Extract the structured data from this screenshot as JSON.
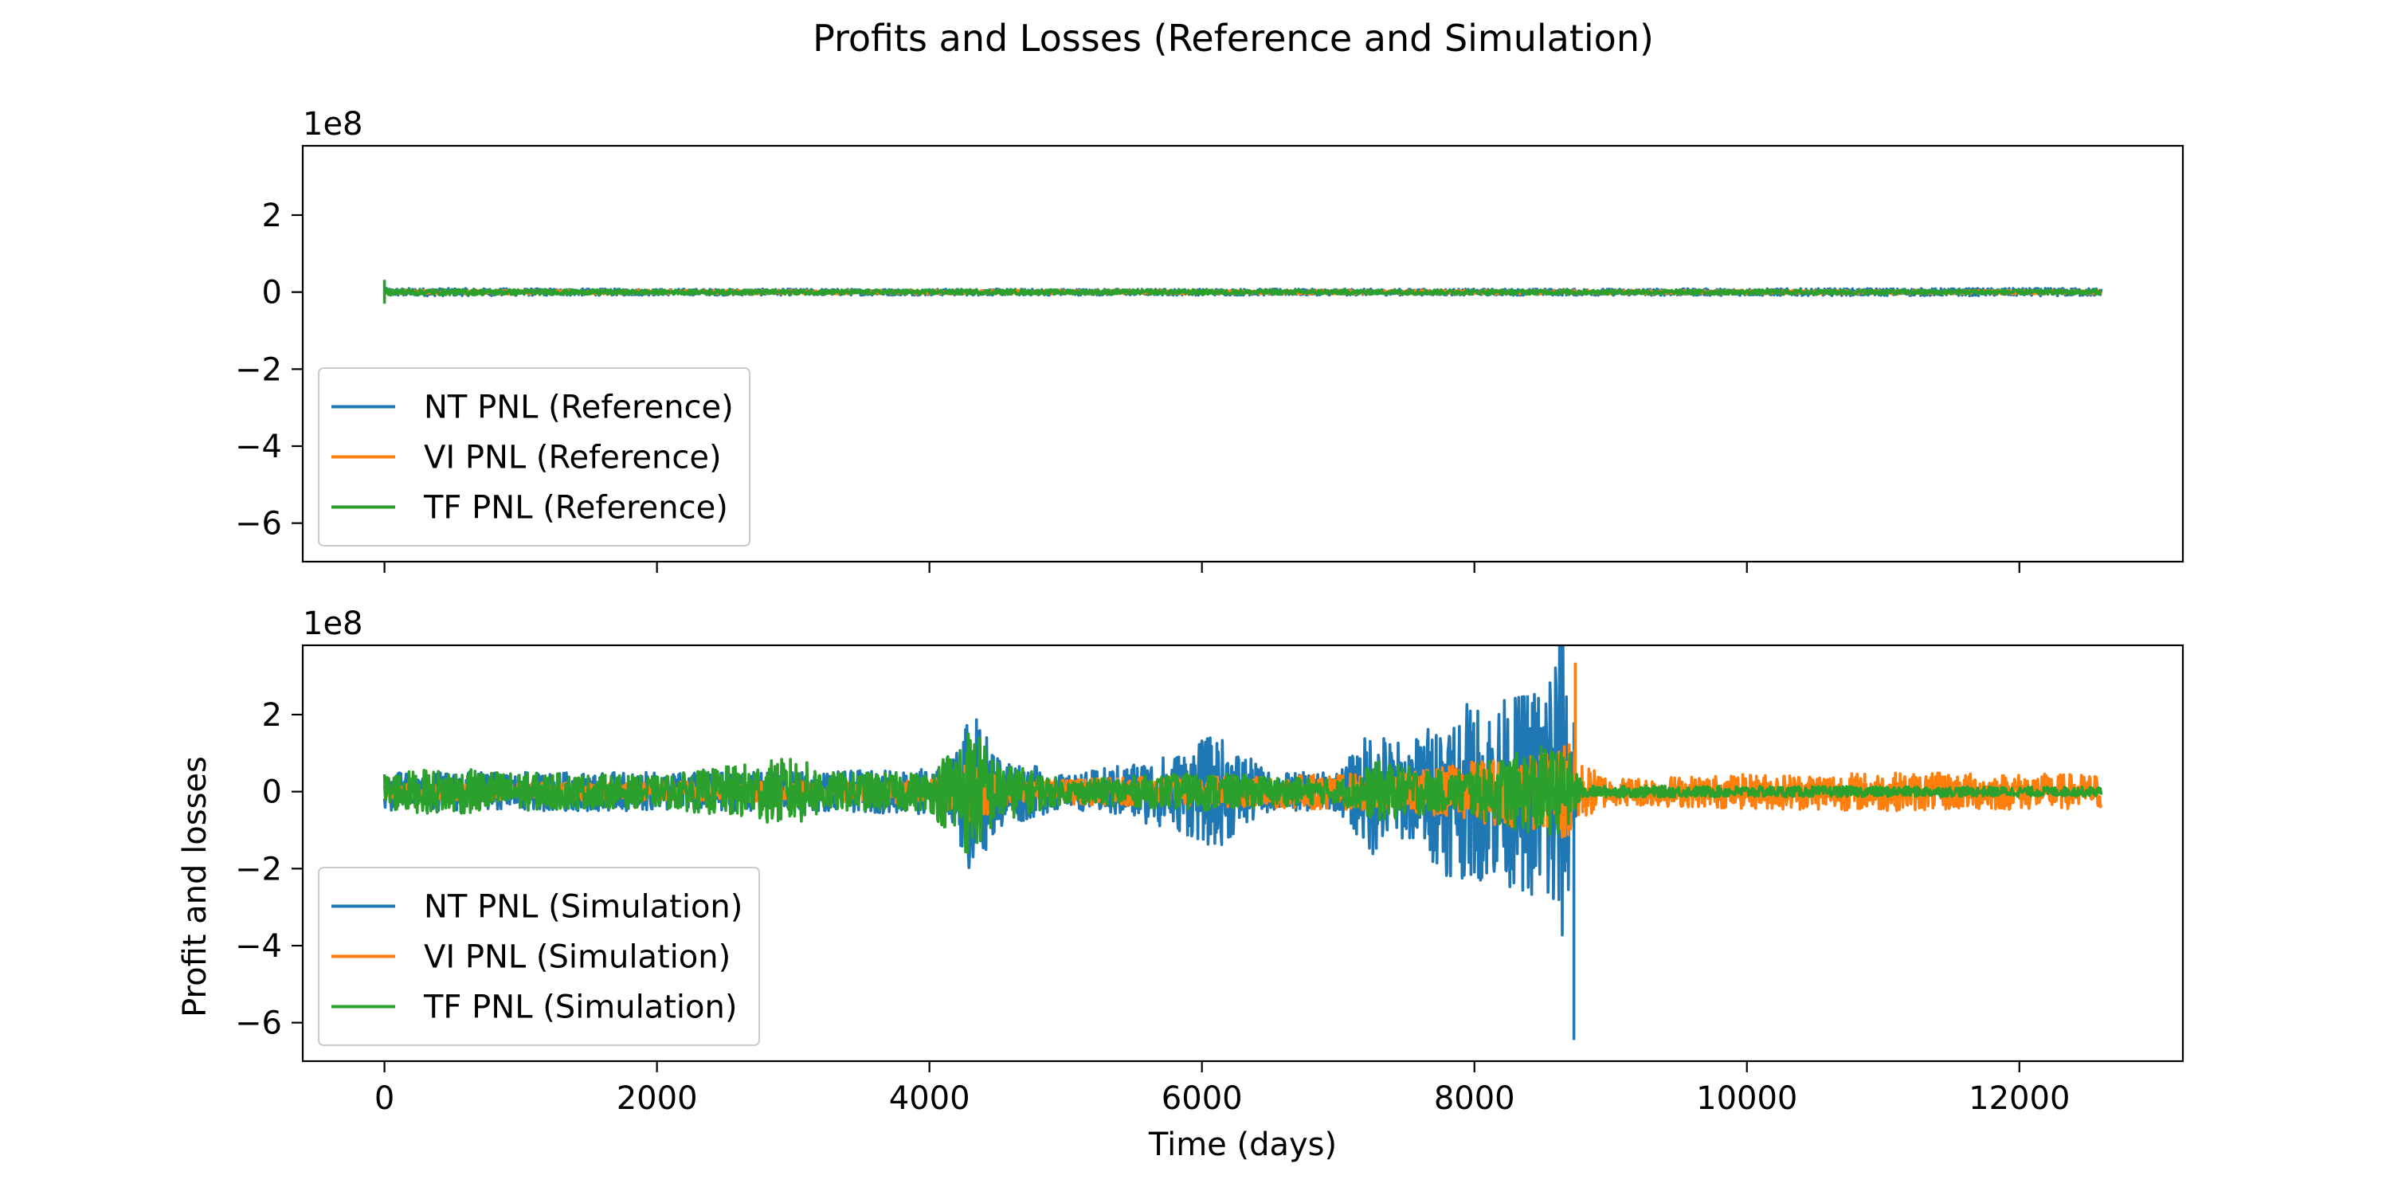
{
  "figure": {
    "title": "Profits and Losses (Reference and Simulation)"
  },
  "chart_data": [
    {
      "type": "line",
      "name": "reference",
      "xlim": [
        -600,
        13200
      ],
      "ylim": [
        -7.0,
        3.8
      ],
      "y_multiplier_label": "1e8",
      "y_unit_multiplier": 100000000,
      "xticks": [
        0,
        2000,
        4000,
        6000,
        8000,
        10000,
        12000
      ],
      "xtick_labels_visible": false,
      "yticks": [
        2,
        0,
        -2,
        -4,
        -6
      ],
      "ytick_labels": [
        "2",
        "0",
        "−2",
        "−4",
        "−6"
      ],
      "xlabel": "",
      "ylabel": "",
      "grid": false,
      "legend_position": "lower-left",
      "series": [
        {
          "name": "NT PNL (Reference)",
          "color": "#1f77b4",
          "x_range": [
            0,
            12600
          ],
          "y_envelope": [
            [
              0,
              0.1
            ],
            [
              2000,
              0.08
            ],
            [
              6000,
              0.08
            ],
            [
              8000,
              0.08
            ],
            [
              12600,
              0.1
            ]
          ]
        },
        {
          "name": "VI PNL (Reference)",
          "color": "#ff7f0e",
          "x_range": [
            0,
            12600
          ],
          "y_envelope": [
            [
              0,
              0.05
            ],
            [
              12600,
              0.05
            ]
          ]
        },
        {
          "name": "TF PNL (Reference)",
          "color": "#2ca02c",
          "x_range": [
            0,
            12600
          ],
          "y_envelope": [
            [
              0,
              0.08
            ],
            [
              2000,
              0.06
            ],
            [
              12600,
              0.06
            ]
          ],
          "spike": {
            "x": 0,
            "y_max": 0.32,
            "y_min": -0.3
          }
        }
      ]
    },
    {
      "type": "line",
      "name": "simulation",
      "xlim": [
        -600,
        13200
      ],
      "ylim": [
        -7.0,
        3.8
      ],
      "y_multiplier_label": "1e8",
      "y_unit_multiplier": 100000000,
      "xticks": [
        0,
        2000,
        4000,
        6000,
        8000,
        10000,
        12000
      ],
      "xtick_labels": [
        "0",
        "2000",
        "4000",
        "6000",
        "8000",
        "10000",
        "12000"
      ],
      "yticks": [
        2,
        0,
        -2,
        -4,
        -6
      ],
      "ytick_labels": [
        "2",
        "0",
        "−2",
        "−4",
        "−6"
      ],
      "xlabel": "Time (days)",
      "ylabel": "Profit and losses",
      "grid": false,
      "legend_position": "lower-left",
      "series": [
        {
          "name": "NT PNL (Simulation)",
          "color": "#1f77b4",
          "x_range": [
            0,
            8750
          ],
          "y_envelope": [
            [
              0,
              0.5
            ],
            [
              1000,
              0.5
            ],
            [
              3000,
              0.5
            ],
            [
              4150,
              0.6
            ],
            [
              4300,
              2.2
            ],
            [
              4500,
              1.0
            ],
            [
              5000,
              0.4
            ],
            [
              5800,
              1.0
            ],
            [
              6100,
              1.5
            ],
            [
              6500,
              0.5
            ],
            [
              7000,
              0.5
            ],
            [
              7250,
              1.7
            ],
            [
              7500,
              1.2
            ],
            [
              7800,
              2.2
            ],
            [
              8300,
              2.5
            ],
            [
              8500,
              3.0
            ],
            [
              8620,
              5.0
            ],
            [
              8700,
              2.5
            ],
            [
              8750,
              0.8
            ]
          ],
          "spike": {
            "x": 8730,
            "y_max": 1.8,
            "y_min": -6.45
          }
        },
        {
          "name": "VI PNL (Simulation)",
          "color": "#ff7f0e",
          "x_range": [
            0,
            12600
          ],
          "y_envelope": [
            [
              0,
              0.2
            ],
            [
              4000,
              0.3
            ],
            [
              4300,
              0.8
            ],
            [
              4600,
              0.3
            ],
            [
              7500,
              0.5
            ],
            [
              8000,
              0.8
            ],
            [
              8500,
              1.0
            ],
            [
              8700,
              1.5
            ],
            [
              8760,
              0.8
            ],
            [
              9000,
              0.35
            ],
            [
              10000,
              0.45
            ],
            [
              11000,
              0.5
            ],
            [
              12600,
              0.45
            ]
          ],
          "spike": {
            "x": 8740,
            "y_max": 3.35,
            "y_min": -0.4
          }
        },
        {
          "name": "TF PNL (Simulation)",
          "color": "#2ca02c",
          "x_range": [
            0,
            12600
          ],
          "y_envelope": [
            [
              0,
              0.5
            ],
            [
              500,
              0.6
            ],
            [
              1000,
              0.5
            ],
            [
              2000,
              0.4
            ],
            [
              2600,
              0.7
            ],
            [
              3000,
              0.9
            ],
            [
              3300,
              0.5
            ],
            [
              4000,
              0.5
            ],
            [
              4300,
              1.8
            ],
            [
              4500,
              0.8
            ],
            [
              5000,
              0.3
            ],
            [
              6000,
              0.5
            ],
            [
              7000,
              0.3
            ],
            [
              7300,
              0.8
            ],
            [
              7800,
              0.5
            ],
            [
              8200,
              0.9
            ],
            [
              8500,
              1.2
            ],
            [
              8700,
              1.0
            ],
            [
              8800,
              0.15
            ],
            [
              12600,
              0.12
            ]
          ]
        }
      ]
    }
  ]
}
